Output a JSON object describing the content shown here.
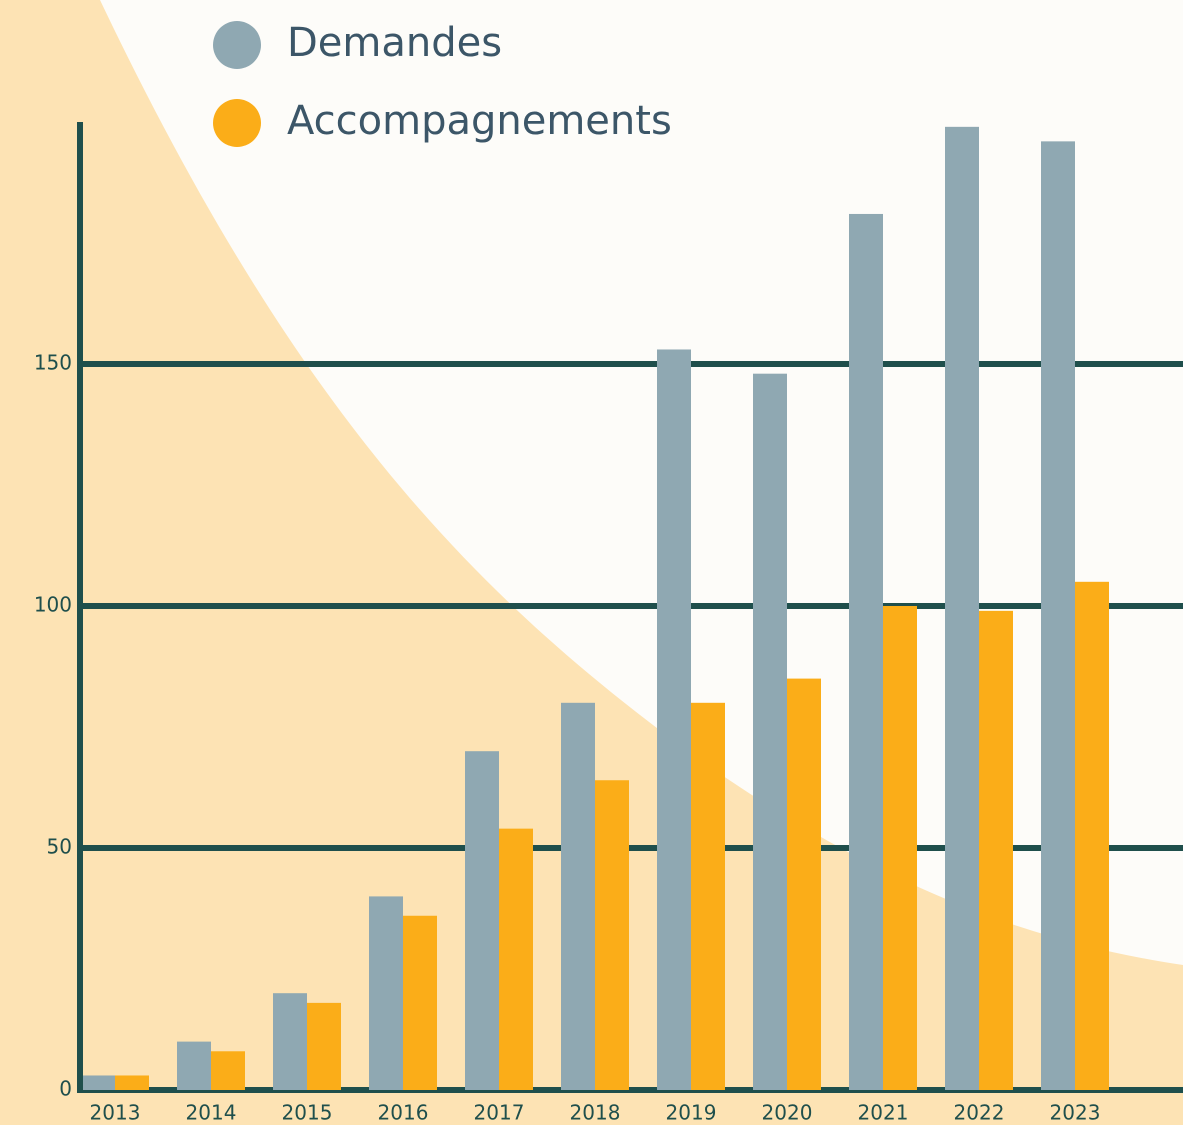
{
  "chart_data": {
    "type": "bar",
    "categories": [
      "2013",
      "2014",
      "2015",
      "2016",
      "2017",
      "2018",
      "2019",
      "2020",
      "2021",
      "2022",
      "2023"
    ],
    "series": [
      {
        "name": "Demandes",
        "color": "#8fa8b2",
        "values": [
          3,
          10,
          20,
          40,
          70,
          80,
          153,
          148,
          181,
          199,
          196
        ]
      },
      {
        "name": "Accompagnements",
        "color": "#fbad18",
        "values": [
          3,
          8,
          18,
          36,
          54,
          64,
          80,
          85,
          100,
          99,
          105
        ]
      }
    ],
    "ylim": [
      0,
      200
    ],
    "yticks": [
      0,
      50,
      100,
      150
    ],
    "grid": true
  }
}
